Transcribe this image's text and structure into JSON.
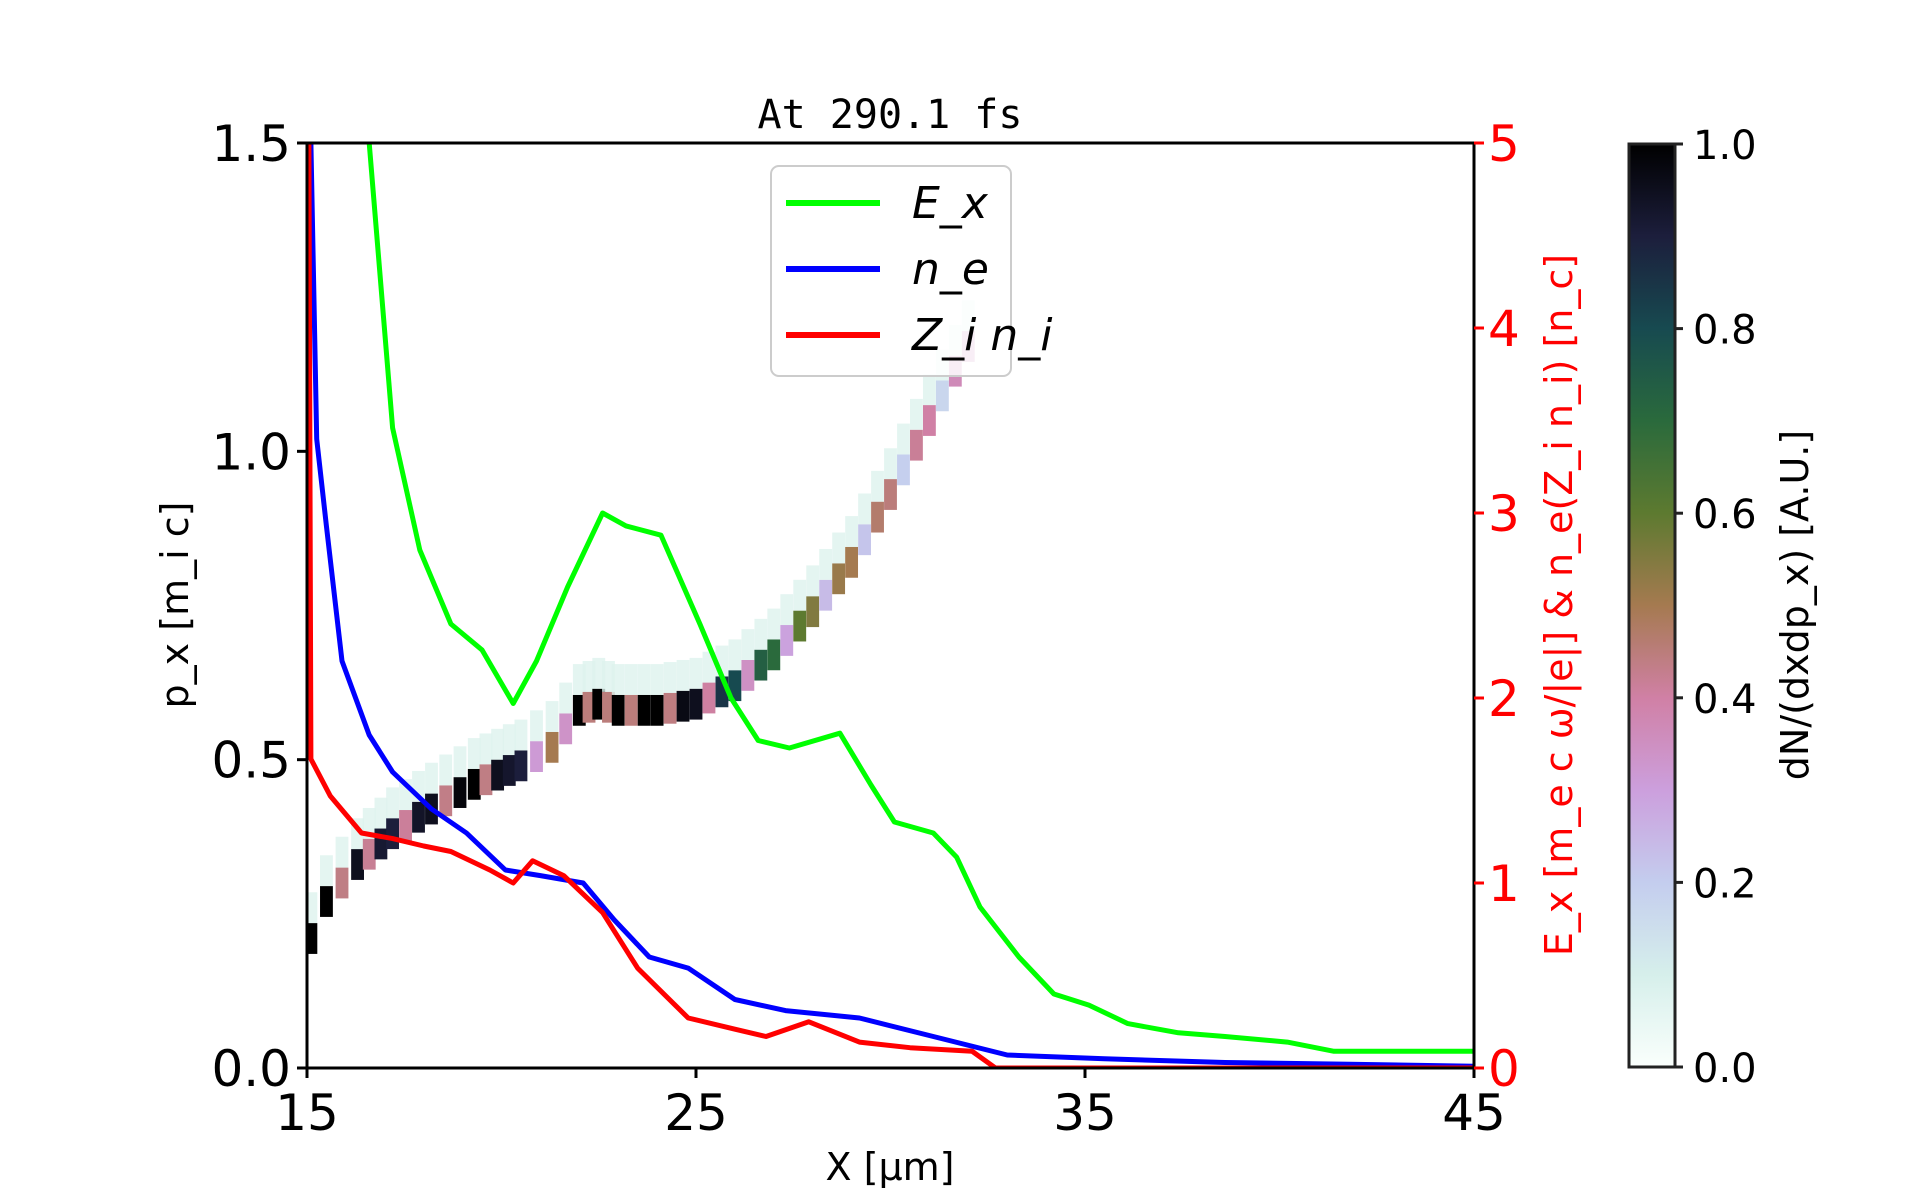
{
  "chart_data": {
    "type": "line",
    "title": "At 290.1 fs",
    "xlabel": "X [μm]",
    "ylabel_left": "p_x [m_i c]",
    "ylabel_right": "E_x [m_e c ω/|e|] & n_e(Z_i n_i) [n_c]",
    "colorbar_label": "dN/(dxdp_x) [A.U.]",
    "xlim": [
      15,
      45
    ],
    "ylim_left": [
      0,
      1.5
    ],
    "ylim_right": [
      0,
      5
    ],
    "colorbar_lim": [
      0,
      1
    ],
    "xticks": [
      "15",
      "25",
      "35",
      "45"
    ],
    "yticks_left": [
      "0.0",
      "0.5",
      "1.0",
      "1.5"
    ],
    "yticks_right": [
      "0",
      "1",
      "2",
      "3",
      "4",
      "5"
    ],
    "colorbar_ticks": [
      "0.0",
      "0.2",
      "0.4",
      "0.6",
      "0.8",
      "1.0"
    ],
    "grid": false,
    "legend_position": "top-center",
    "right_axis_color": "#ff0000",
    "series": [
      {
        "name": "E_x",
        "axis": "right",
        "color": "#00ff00",
        "x": [
          16.6,
          17.2,
          17.9,
          18.7,
          19.5,
          20.3,
          20.9,
          21.7,
          22.6,
          23.2,
          24.1,
          25.1,
          25.9,
          26.6,
          27.4,
          28.7,
          29.5,
          30.1,
          31.1,
          31.7,
          32.3,
          33.3,
          34.2,
          35.1,
          36.1,
          37.4,
          38.6,
          40.2,
          41.4,
          45
        ],
        "y": [
          5.0,
          3.46,
          2.8,
          2.4,
          2.26,
          1.97,
          2.2,
          2.6,
          3.0,
          2.93,
          2.88,
          2.4,
          2.0,
          1.77,
          1.73,
          1.81,
          1.53,
          1.33,
          1.27,
          1.14,
          0.87,
          0.6,
          0.4,
          0.34,
          0.24,
          0.19,
          0.17,
          0.14,
          0.09,
          0.09
        ]
      },
      {
        "name": "n_e",
        "axis": "right",
        "color": "#0000ff",
        "x": [
          15.1,
          15.25,
          15.5,
          15.9,
          16.6,
          17.2,
          18.2,
          19.1,
          20.1,
          21.0,
          22.1,
          22.9,
          23.8,
          24.8,
          26.0,
          27.3,
          29.2,
          31.1,
          33.0,
          35.5,
          38.6,
          41.8,
          45
        ],
        "y": [
          5.0,
          3.4,
          2.93,
          2.2,
          1.8,
          1.6,
          1.4,
          1.27,
          1.07,
          1.04,
          1.0,
          0.8,
          0.6,
          0.54,
          0.37,
          0.31,
          0.27,
          0.17,
          0.07,
          0.05,
          0.03,
          0.02,
          0.01
        ]
      },
      {
        "name": "Z_i n_i",
        "axis": "right",
        "color": "#ff0000",
        "x": [
          15.05,
          15.1,
          15.6,
          16.4,
          17.2,
          18.0,
          18.7,
          19.7,
          20.3,
          20.8,
          21.6,
          22.6,
          23.5,
          24.8,
          26.0,
          26.8,
          27.9,
          29.2,
          30.5,
          32.1,
          32.7,
          45
        ],
        "y": [
          5.0,
          1.67,
          1.47,
          1.27,
          1.24,
          1.2,
          1.17,
          1.07,
          1.0,
          1.12,
          1.04,
          0.84,
          0.54,
          0.27,
          0.21,
          0.17,
          0.25,
          0.14,
          0.11,
          0.09,
          0.0,
          0.0
        ]
      }
    ],
    "phase_space": {
      "type": "heatmap",
      "x": [
        15.1,
        15.5,
        16.3,
        17.2,
        18.2,
        19.3,
        20.5,
        21.3,
        22.0,
        22.5,
        23.0,
        24.0,
        25.0,
        26.0,
        27.0,
        28.0,
        29.0,
        30.0,
        31.0,
        32.0,
        32.3
      ],
      "p": [
        0.21,
        0.27,
        0.33,
        0.38,
        0.42,
        0.46,
        0.49,
        0.52,
        0.58,
        0.59,
        0.58,
        0.58,
        0.59,
        0.62,
        0.67,
        0.74,
        0.82,
        0.93,
        1.05,
        1.17,
        1.2
      ],
      "intensity": [
        1.0,
        1.0,
        0.95,
        0.9,
        0.95,
        1.0,
        0.9,
        0.5,
        1.0,
        1.0,
        1.0,
        1.0,
        0.95,
        0.8,
        0.7,
        0.55,
        0.5,
        0.45,
        0.4,
        0.35,
        0.3
      ]
    }
  }
}
